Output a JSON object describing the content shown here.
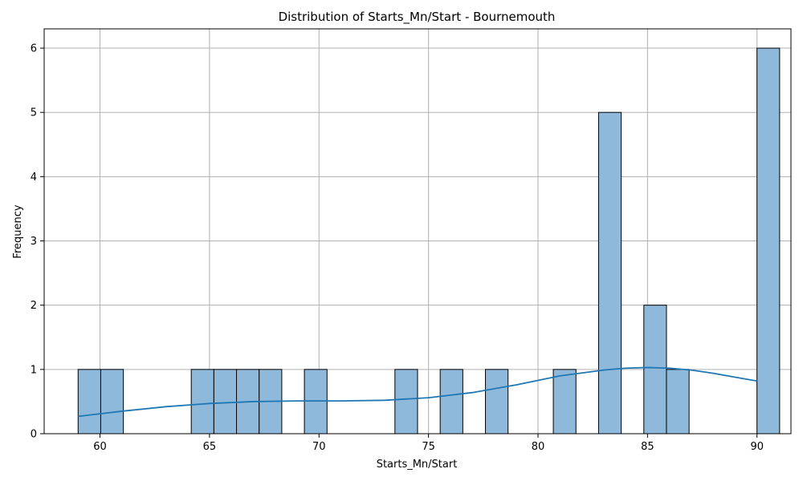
{
  "chart_data": {
    "type": "histogram",
    "title": "Distribution of Starts_Mn/Start - Bournemouth",
    "xlabel": "Starts_Mn/Start",
    "ylabel": "Frequency",
    "xlim": [
      57.45,
      91.55
    ],
    "ylim": [
      0,
      6.3
    ],
    "xticks": [
      60,
      65,
      70,
      75,
      80,
      85,
      90
    ],
    "yticks": [
      0,
      1,
      2,
      3,
      4,
      5,
      6
    ],
    "grid": true,
    "bin_start": 59.0,
    "bin_width": 1.0333,
    "counts": [
      1,
      1,
      0,
      0,
      0,
      1,
      1,
      1,
      1,
      0,
      1,
      0,
      0,
      0,
      1,
      0,
      1,
      0,
      1,
      0,
      0,
      1,
      0,
      5,
      0,
      2,
      1,
      0,
      0,
      0,
      6
    ],
    "bar_color": "#8fb9da",
    "bar_edge_color": "#000000",
    "kde_color": "#1f77b4",
    "kde_curve": {
      "x": [
        59,
        61,
        63,
        65,
        67,
        69,
        71,
        73,
        75,
        77,
        79,
        81,
        83,
        84,
        85,
        86,
        87,
        88,
        89,
        90
      ],
      "y": [
        0.27,
        0.35,
        0.42,
        0.47,
        0.5,
        0.51,
        0.51,
        0.52,
        0.56,
        0.64,
        0.76,
        0.9,
        0.99,
        1.02,
        1.03,
        1.02,
        0.99,
        0.94,
        0.88,
        0.82
      ]
    }
  }
}
